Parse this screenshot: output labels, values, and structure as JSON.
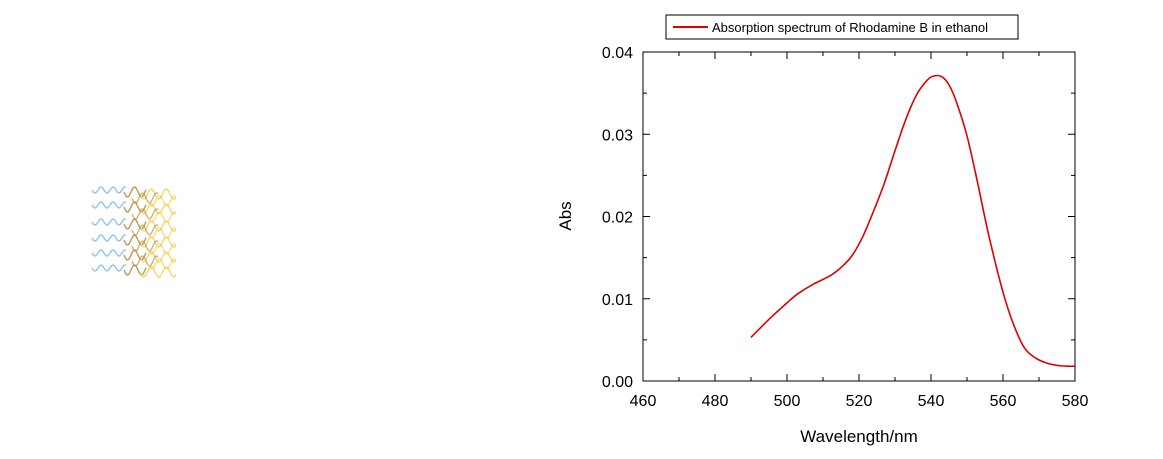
{
  "chart_data": {
    "type": "line",
    "title": "",
    "xlabel": "Wavelength/nm",
    "ylabel": "Abs",
    "xlim": [
      460,
      580
    ],
    "ylim": [
      0.0,
      0.04
    ],
    "xticks": [
      460,
      480,
      500,
      520,
      540,
      560,
      580
    ],
    "xtick_labels": [
      "460",
      "480",
      "500",
      "520",
      "540",
      "560",
      "580"
    ],
    "yticks": [
      0.0,
      0.01,
      0.02,
      0.03,
      0.04
    ],
    "ytick_labels": [
      "0.00",
      "0.01",
      "0.02",
      "0.03",
      "0.04"
    ],
    "grid": false,
    "legend_position": "top",
    "series": [
      {
        "name": "Absorption spectrum of Rhodamine B in ethanol",
        "color": "#e00000",
        "x": [
          490,
          495,
          500,
          503,
          507,
          512,
          515,
          518,
          521,
          524,
          527,
          530,
          533,
          536,
          539,
          541,
          543,
          545,
          547,
          550,
          553,
          556,
          560,
          563,
          566,
          569,
          572,
          575,
          578,
          580
        ],
        "y": [
          0.0053,
          0.0075,
          0.0095,
          0.0106,
          0.0117,
          0.0128,
          0.0138,
          0.0152,
          0.0175,
          0.0206,
          0.024,
          0.028,
          0.0318,
          0.0348,
          0.0366,
          0.0371,
          0.037,
          0.036,
          0.034,
          0.0298,
          0.024,
          0.0178,
          0.0108,
          0.0068,
          0.004,
          0.0028,
          0.0022,
          0.0019,
          0.0018,
          0.0018
        ]
      }
    ]
  },
  "decoration": {
    "wave_colors": [
      "#7fb7ea",
      "#b8944a",
      "#f3d35c"
    ]
  }
}
